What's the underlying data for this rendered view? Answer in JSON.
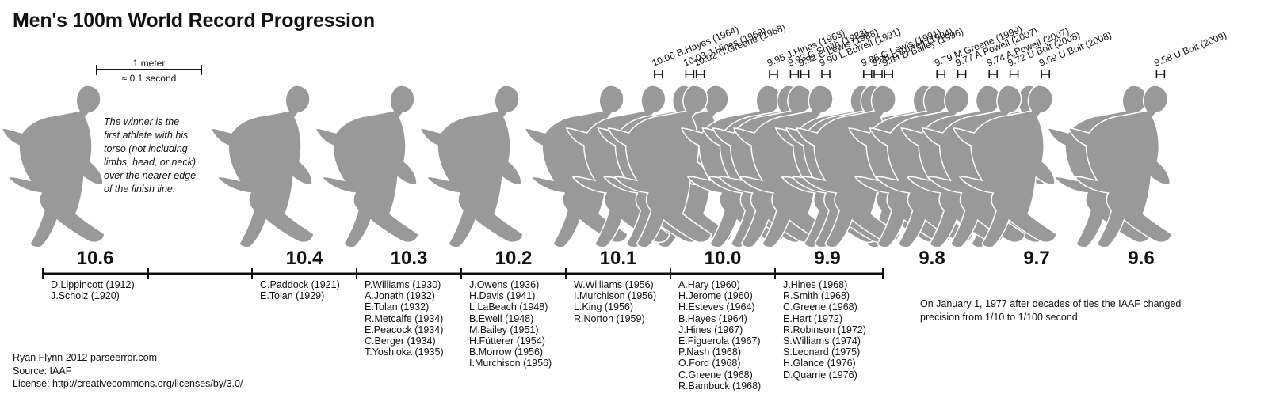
{
  "title": "Men's 100m World Record Progression",
  "scale_bar": {
    "length_label": "1 meter",
    "time_label": "≈ 0.1 second"
  },
  "rule_note": "The winner is the first athlete with his torso (not including limbs, head, or neck) over the nearer edge of the finish line.",
  "groups": [
    {
      "time": "10.6",
      "holders": [
        "D.Lippincott (1912)",
        "J.Scholz (1920)"
      ]
    },
    {
      "time": "10.4",
      "holders": [
        "C.Paddock (1921)",
        "E.Tolan (1929)"
      ]
    },
    {
      "time": "10.3",
      "holders": [
        "P.Williams (1930)",
        "A.Jonath (1932)",
        "E.Tolan (1932)",
        "R.Metcalfe (1934)",
        "E.Peacock (1934)",
        "C.Berger (1934)",
        "T.Yoshioka (1935)"
      ]
    },
    {
      "time": "10.2",
      "holders": [
        "J.Owens (1936)",
        "H.Davis (1941)",
        "L.LaBeach (1948)",
        "B.Ewell (1948)",
        "M.Bailey (1951)",
        "H.Fütterer (1954)",
        "B.Morrow (1956)",
        "I.Murchison (1956)"
      ]
    },
    {
      "time": "10.1",
      "holders": [
        "W.Williams (1956)",
        "I.Murchison (1956)",
        "L.King (1956)",
        "R.Norton (1959)"
      ]
    },
    {
      "time": "10.0",
      "holders": [
        "A.Hary (1960)",
        "H.Jerome (1960)",
        "H.Esteves (1964)",
        "B.Hayes (1964)",
        "J.Hines (1967)",
        "E.Figuerola (1967)",
        "P.Nash (1968)",
        "O.Ford (1968)",
        "C.Greene (1968)",
        "R.Bambuck (1968)"
      ]
    },
    {
      "time": "9.9",
      "holders": [
        "J.Hines (1968)",
        "R.Smith (1968)",
        "C.Greene (1968)",
        "E.Hart (1972)",
        "R.Robinson (1972)",
        "S.Williams (1974)",
        "S.Leonard (1975)",
        "H.Glance (1976)",
        "D.Quarrie (1976)"
      ]
    },
    {
      "time": "9.8",
      "holders": []
    },
    {
      "time": "9.7",
      "holders": []
    },
    {
      "time": "9.6",
      "holders": []
    }
  ],
  "electronic_records": [
    "10.06 B.Hayes (1964)",
    "10.03 J.Hines (1968)",
    "10.02 C.Greene (1968)",
    "9.95 J.Hines (1968)",
    "9.93 C.Smith (1983)",
    "9.92 C.Lewis (1988)",
    "9.90 L.Burrell (1991)",
    "9.86 C.Lewis (1991)",
    "9.85 L.Burrell (1994)",
    "9.84 D.Bailey (1996)",
    "9.79 M.Greene (1999)",
    "9.77 A.Powell (2007)",
    "9.74 A.Powell (2007)",
    "9.72 U.Bolt (2008)",
    "9.69 U.Bolt (2008)",
    "9.58 U.Bolt (2009)"
  ],
  "footnote": [
    "On January 1, 1977 after decades of ties the IAAF changed",
    "precision from 1/10 to 1/100 second."
  ],
  "credits": [
    "Ryan Flynn 2012 parseerror.com",
    "Source: IAAF",
    "License: http://creativecommons.org/licenses/by/3.0/"
  ],
  "colors": {
    "runner": "#999999",
    "runner_edge": "#ffffff",
    "ink": "#111111",
    "background": "#ffffff"
  }
}
